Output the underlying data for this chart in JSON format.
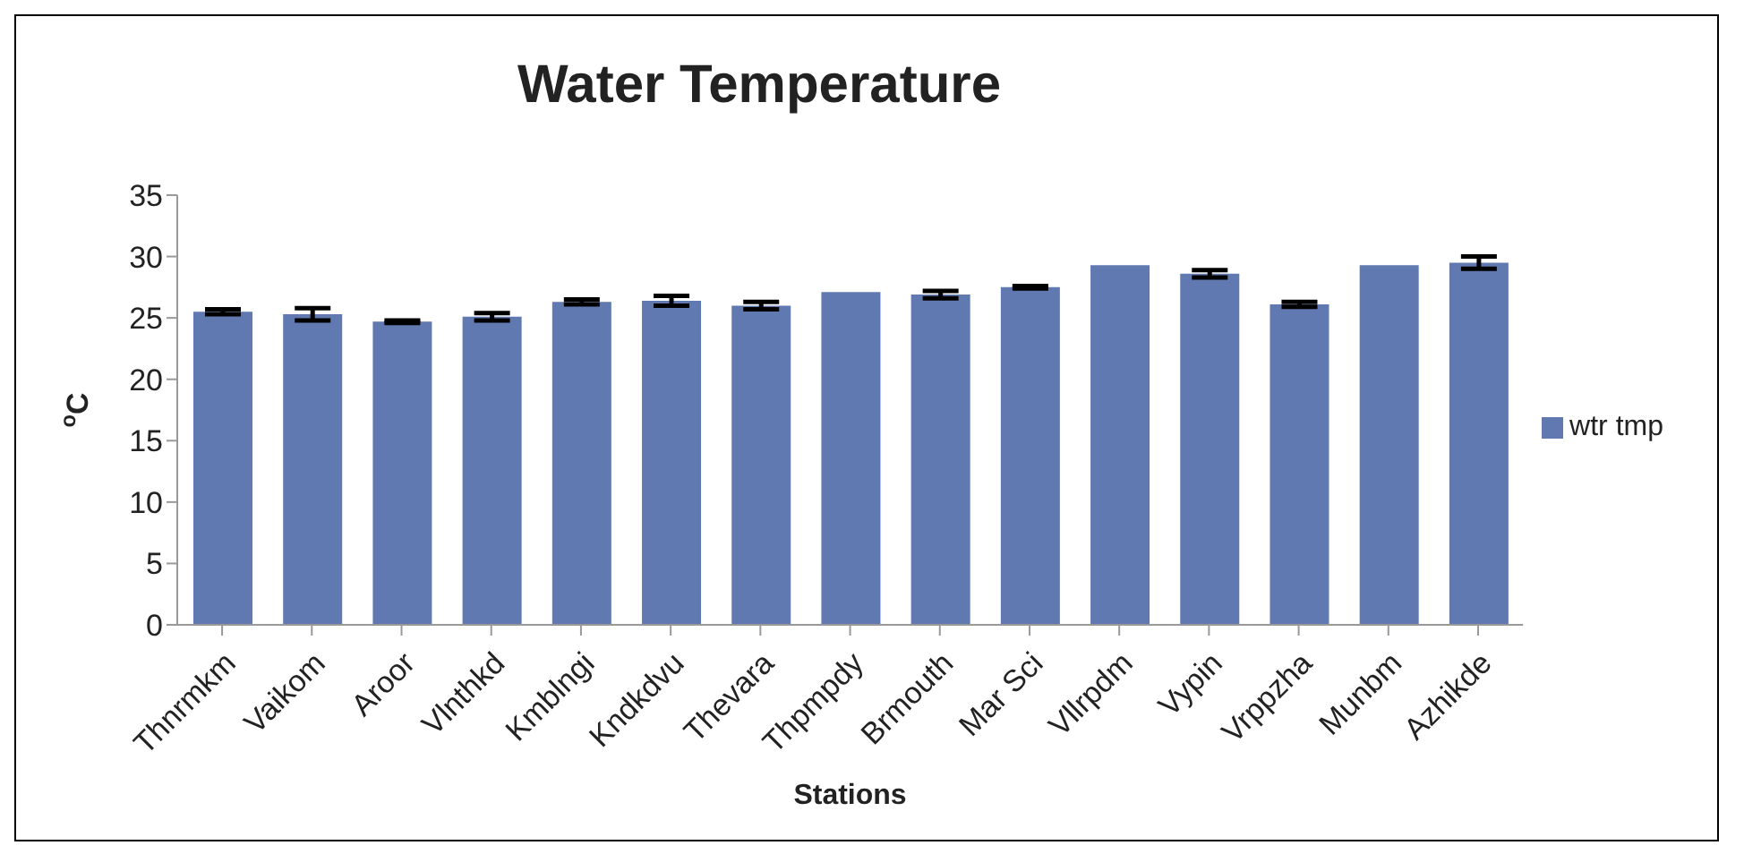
{
  "chart_data": {
    "type": "bar",
    "title": "Water Temperature",
    "xlabel": "Stations",
    "ylabel": "$^{o}$C",
    "categories": [
      "Thnrmkm",
      "Vaikom",
      "Aroor",
      "Vlnthkd",
      "Kmblngi",
      "Kndkdvu",
      "Thevara",
      "Thpmpdy",
      "Brmouth",
      "Mar Sci",
      "Vllrpdm",
      "Vypin",
      "Vrppzha",
      "Munbm",
      "Azhikde"
    ],
    "series": [
      {
        "name": "wtr tmp",
        "color": "#6079b0",
        "values": [
          25.5,
          25.3,
          24.7,
          25.1,
          26.3,
          26.4,
          26.0,
          27.1,
          26.9,
          27.5,
          29.3,
          28.6,
          26.1,
          29.3,
          29.5
        ],
        "errors": [
          0.2,
          0.5,
          0.1,
          0.3,
          0.2,
          0.4,
          0.3,
          null,
          0.3,
          0.1,
          null,
          0.3,
          0.2,
          null,
          0.5
        ]
      }
    ],
    "ylim": [
      0,
      35
    ],
    "yticks": [
      0,
      5,
      10,
      15,
      20,
      25,
      30,
      35
    ],
    "grid": false,
    "legend": "right"
  }
}
